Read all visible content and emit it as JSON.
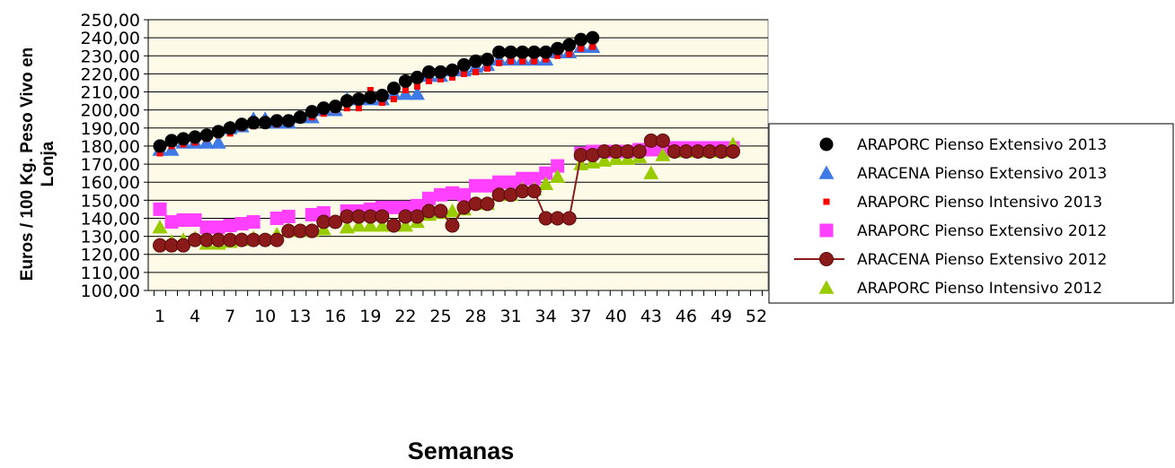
{
  "chart_data": {
    "type": "scatter",
    "title": "",
    "xlabel": "Semanas",
    "ylabel": "Euros  /  100 Kg. Peso Vivo en Lonja",
    "xlim": [
      0,
      53
    ],
    "ylim": [
      100,
      250
    ],
    "x_ticks": [
      "1",
      "4",
      "7",
      "10",
      "13",
      "16",
      "19",
      "22",
      "25",
      "28",
      "31",
      "34",
      "37",
      "40",
      "43",
      "46",
      "49",
      "52"
    ],
    "y_ticks": [
      "100,00",
      "110,00",
      "120,00",
      "130,00",
      "140,00",
      "150,00",
      "160,00",
      "170,00",
      "180,00",
      "190,00",
      "200,00",
      "210,00",
      "220,00",
      "230,00",
      "240,00",
      "250,00"
    ],
    "grid": "horizontal",
    "plot_background": "#fdfbe7",
    "legend_position": "right",
    "series": [
      {
        "name": "ARAPORC Pienso Extensivo 2013",
        "marker": "circle",
        "color": "#000000",
        "line": false,
        "x": [
          1,
          2,
          3,
          4,
          5,
          6,
          7,
          8,
          9,
          10,
          11,
          12,
          13,
          14,
          15,
          16,
          17,
          18,
          19,
          20,
          21,
          22,
          23,
          24,
          25,
          26,
          27,
          28,
          29,
          30,
          31,
          32,
          33,
          34,
          35,
          36,
          37,
          38
        ],
        "y": [
          180,
          183,
          184,
          185,
          186,
          188,
          190,
          192,
          193,
          193,
          194,
          194,
          196,
          199,
          201,
          202,
          205,
          206,
          207,
          208,
          212,
          216,
          218,
          221,
          221,
          222,
          225,
          227,
          228,
          232,
          232,
          232,
          232,
          232,
          234,
          236,
          239,
          240
        ]
      },
      {
        "name": "ARACENA Pienso Extensivo 2013",
        "marker": "triangle",
        "color": "#3d7ae6",
        "line": false,
        "x": [
          1,
          2,
          3,
          4,
          5,
          6,
          7,
          8,
          9,
          10,
          11,
          12,
          13,
          14,
          15,
          16,
          17,
          18,
          19,
          20,
          21,
          22,
          23,
          24,
          25,
          26,
          27,
          28,
          29,
          30,
          31,
          32,
          33,
          34,
          35,
          36,
          37,
          38
        ],
        "y": [
          178,
          178,
          182,
          182,
          182,
          182,
          190,
          191,
          195,
          195,
          193,
          193,
          196,
          196,
          200,
          200,
          206,
          206,
          206,
          206,
          209,
          209,
          209,
          219,
          219,
          222,
          222,
          224,
          225,
          228,
          228,
          228,
          228,
          228,
          232,
          232,
          235,
          235
        ]
      },
      {
        "name": "ARAPORC Pienso Intensivo 2013",
        "marker": "square-small",
        "color": "#ff0000",
        "line": false,
        "x": [
          1,
          2,
          3,
          4,
          5,
          6,
          7,
          8,
          9,
          10,
          11,
          12,
          13,
          14,
          15,
          16,
          17,
          18,
          19,
          20,
          21,
          22,
          23,
          24,
          25,
          26,
          27,
          28,
          29,
          30,
          31,
          32,
          33,
          34,
          35,
          36,
          37,
          38
        ],
        "y": [
          176,
          180,
          181,
          182,
          184,
          186,
          187,
          190,
          191,
          192,
          192,
          193,
          195,
          196,
          198,
          200,
          201,
          201,
          211,
          204,
          206,
          211,
          213,
          216,
          217,
          218,
          220,
          221,
          223,
          226,
          227,
          227,
          227,
          228,
          230,
          231,
          234,
          235
        ]
      },
      {
        "name": "ARAPORC Pienso Extensivo 2012",
        "marker": "square",
        "color": "#ff40ff",
        "line": false,
        "x": [
          1,
          2,
          3,
          4,
          5,
          6,
          7,
          8,
          9,
          11,
          12,
          14,
          15,
          17,
          18,
          19,
          20,
          21,
          22,
          23,
          24,
          25,
          26,
          27,
          28,
          29,
          30,
          31,
          32,
          33,
          34,
          35,
          37,
          38,
          39,
          40,
          41,
          42,
          43,
          44,
          45,
          46,
          47,
          48,
          49,
          50
        ],
        "y": [
          145,
          138,
          139,
          139,
          135,
          135,
          136,
          137,
          138,
          140,
          141,
          142,
          143,
          144,
          144,
          145,
          146,
          146,
          146,
          147,
          151,
          153,
          154,
          153,
          158,
          158,
          160,
          160,
          162,
          162,
          165,
          169,
          176,
          177,
          177,
          177,
          177,
          178,
          178,
          178,
          179,
          179,
          179,
          179,
          179,
          179
        ]
      },
      {
        "name": "ARACENA Pienso Extensivo 2012",
        "marker": "circle",
        "color": "#8b1a1a",
        "line": true,
        "x": [
          1,
          2,
          3,
          4,
          5,
          6,
          7,
          8,
          9,
          10,
          11,
          12,
          13,
          14,
          15,
          16,
          17,
          18,
          19,
          20,
          21,
          22,
          23,
          24,
          25,
          26,
          27,
          28,
          29,
          30,
          31,
          32,
          33,
          34,
          35,
          36,
          37,
          38,
          39,
          40,
          41,
          42,
          43,
          44,
          45,
          46,
          47,
          48,
          49,
          50
        ],
        "y": [
          125,
          125,
          125,
          128,
          128,
          128,
          128,
          128,
          128,
          128,
          128,
          133,
          133,
          133,
          138,
          138,
          141,
          141,
          141,
          141,
          136,
          141,
          141,
          144,
          144,
          136,
          146,
          148,
          148,
          153,
          153,
          155,
          155,
          140,
          140,
          140,
          175,
          175,
          177,
          177,
          177,
          177,
          183,
          183,
          177,
          177,
          177,
          177,
          177,
          177
        ]
      },
      {
        "name": "ARAPORC Pienso Intensivo 2012",
        "marker": "triangle",
        "color": "#99cc00",
        "line": false,
        "x": [
          1,
          2,
          3,
          4,
          5,
          6,
          7,
          8,
          9,
          11,
          12,
          14,
          15,
          17,
          18,
          19,
          20,
          21,
          22,
          23,
          24,
          25,
          26,
          27,
          28,
          29,
          30,
          31,
          32,
          33,
          34,
          35,
          37,
          38,
          39,
          40,
          41,
          42,
          43,
          44,
          45,
          46,
          47,
          48,
          49,
          50
        ],
        "y": [
          135,
          127,
          128,
          129,
          126,
          126,
          127,
          128,
          129,
          131,
          133,
          133,
          134,
          135,
          136,
          136,
          136,
          136,
          136,
          138,
          142,
          143,
          144,
          145,
          148,
          148,
          153,
          153,
          156,
          156,
          159,
          163,
          170,
          171,
          172,
          173,
          173,
          174,
          165,
          175,
          177,
          177,
          177,
          177,
          177,
          181
        ]
      }
    ]
  }
}
